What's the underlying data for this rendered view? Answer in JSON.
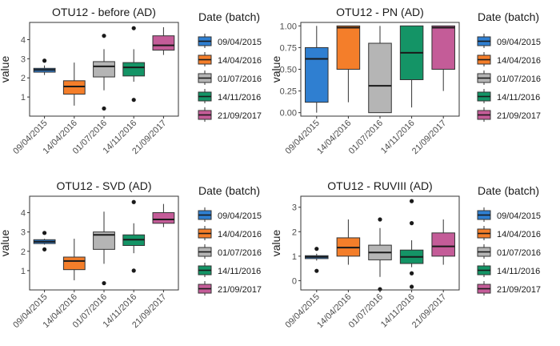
{
  "legend": {
    "title": "Date (batch)",
    "entries": [
      "09/04/2015",
      "14/04/2016",
      "01/07/2016",
      "14/11/2016",
      "21/09/2017"
    ],
    "colors": [
      "#2f7fd1",
      "#f47e2a",
      "#b5b5b5",
      "#149466",
      "#c45c98"
    ]
  },
  "chart_data": [
    {
      "type": "box",
      "title": "OTU12 - before (AD)",
      "ylabel": "value",
      "xlabel": "",
      "categories": [
        "09/04/2015",
        "14/04/2016",
        "01/07/2016",
        "14/11/2016",
        "21/09/2017"
      ],
      "ylim": [
        0,
        4.9
      ],
      "yticks": [
        1,
        2,
        3,
        4
      ],
      "boxes": [
        {
          "min": 2.15,
          "q1": 2.3,
          "median": 2.42,
          "q3": 2.5,
          "max": 2.65,
          "outliers": [
            2.9
          ]
        },
        {
          "min": 0.55,
          "q1": 1.15,
          "median": 1.55,
          "q3": 1.85,
          "max": 2.8,
          "outliers": []
        },
        {
          "min": 1.35,
          "q1": 2.05,
          "median": 2.6,
          "q3": 2.85,
          "max": 3.5,
          "outliers": [
            4.2,
            0.4
          ]
        },
        {
          "min": 1.8,
          "q1": 2.1,
          "median": 2.55,
          "q3": 2.8,
          "max": 3.5,
          "outliers": [
            4.6,
            0.85
          ]
        },
        {
          "min": 3.2,
          "q1": 3.45,
          "median": 3.7,
          "q3": 4.2,
          "max": 4.65,
          "outliers": []
        }
      ]
    },
    {
      "type": "box",
      "title": "OTU12 - PN (AD)",
      "ylabel": "value",
      "xlabel": "",
      "categories": [
        "09/04/2015",
        "14/04/2016",
        "01/07/2016",
        "14/11/2016",
        "21/09/2017"
      ],
      "ylim": [
        -0.04,
        1.04
      ],
      "yticks": [
        0.0,
        0.25,
        0.5,
        0.75,
        1.0
      ],
      "boxes": [
        {
          "min": 0.0,
          "q1": 0.12,
          "median": 0.62,
          "q3": 0.75,
          "max": 1.0,
          "outliers": []
        },
        {
          "min": 0.12,
          "q1": 0.5,
          "median": 0.98,
          "q3": 1.0,
          "max": 1.0,
          "outliers": []
        },
        {
          "min": 0.0,
          "q1": 0.0,
          "median": 0.31,
          "q3": 0.8,
          "max": 1.0,
          "outliers": []
        },
        {
          "min": 0.06,
          "q1": 0.38,
          "median": 0.69,
          "q3": 1.0,
          "max": 1.0,
          "outliers": []
        },
        {
          "min": 0.25,
          "q1": 0.5,
          "median": 0.98,
          "q3": 1.0,
          "max": 1.0,
          "outliers": []
        }
      ]
    },
    {
      "type": "box",
      "title": "OTU12 - SVD (AD)",
      "ylabel": "value",
      "xlabel": "",
      "categories": [
        "09/04/2015",
        "14/04/2016",
        "01/07/2016",
        "14/11/2016",
        "21/09/2017"
      ],
      "ylim": [
        0,
        4.85
      ],
      "yticks": [
        1,
        2,
        3,
        4
      ],
      "boxes": [
        {
          "min": 2.35,
          "q1": 2.4,
          "median": 2.5,
          "q3": 2.6,
          "max": 2.65,
          "outliers": [
            2.95,
            2.1
          ]
        },
        {
          "min": 0.5,
          "q1": 1.05,
          "median": 1.5,
          "q3": 1.7,
          "max": 2.65,
          "outliers": []
        },
        {
          "min": 1.35,
          "q1": 2.1,
          "median": 2.85,
          "q3": 3.0,
          "max": 4.05,
          "outliers": [
            0.35
          ]
        },
        {
          "min": 1.9,
          "q1": 2.3,
          "median": 2.6,
          "q3": 2.85,
          "max": 3.45,
          "outliers": [
            4.55,
            1.0
          ]
        },
        {
          "min": 3.25,
          "q1": 3.45,
          "median": 3.65,
          "q3": 4.0,
          "max": 4.45,
          "outliers": []
        }
      ]
    },
    {
      "type": "box",
      "title": "OTU12 - RUVIII (AD)",
      "ylabel": "value",
      "xlabel": "",
      "categories": [
        "09/04/2015",
        "14/04/2016",
        "01/07/2016",
        "14/11/2016",
        "21/09/2017"
      ],
      "ylim": [
        -0.38,
        3.45
      ],
      "yticks": [
        0,
        1,
        2,
        3
      ],
      "boxes": [
        {
          "min": 0.82,
          "q1": 0.9,
          "median": 0.97,
          "q3": 1.02,
          "max": 1.1,
          "outliers": [
            1.3,
            0.4
          ]
        },
        {
          "min": 0.65,
          "q1": 1.0,
          "median": 1.35,
          "q3": 1.75,
          "max": 2.5,
          "outliers": []
        },
        {
          "min": 0.15,
          "q1": 0.85,
          "median": 1.15,
          "q3": 1.45,
          "max": 2.15,
          "outliers": [
            2.5,
            -0.35
          ]
        },
        {
          "min": 0.55,
          "q1": 0.7,
          "median": 0.97,
          "q3": 1.25,
          "max": 1.65,
          "outliers": [
            3.25,
            2.35,
            0.3,
            -0.25
          ]
        },
        {
          "min": 0.65,
          "q1": 1.0,
          "median": 1.4,
          "q3": 1.95,
          "max": 2.5,
          "outliers": []
        }
      ]
    }
  ]
}
